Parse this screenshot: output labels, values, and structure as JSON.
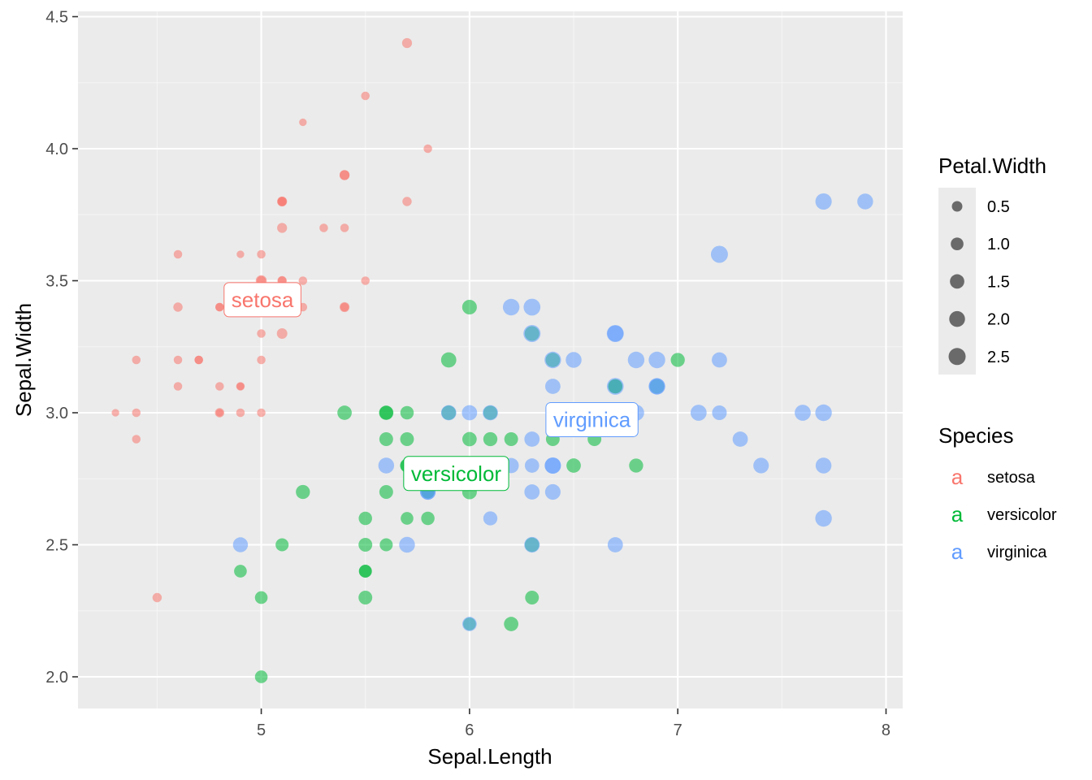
{
  "chart_data": {
    "type": "scatter",
    "xlabel": "Sepal.Length",
    "ylabel": "Sepal.Width",
    "xlim": [
      4.12,
      8.08
    ],
    "ylim": [
      1.88,
      4.52
    ],
    "x_ticks": [
      5,
      6,
      7,
      8
    ],
    "x_tick_labels": [
      "5",
      "6",
      "7",
      "8"
    ],
    "y_ticks": [
      2.0,
      2.5,
      3.0,
      3.5,
      4.0,
      4.5
    ],
    "y_tick_labels": [
      "2.0",
      "2.5",
      "3.0",
      "3.5",
      "4.0",
      "4.5"
    ],
    "grid": true,
    "legend_position": "right",
    "size_legend": {
      "title": "Petal.Width",
      "items": [
        {
          "value": 0.5,
          "label": "0.5"
        },
        {
          "value": 1.0,
          "label": "1.0"
        },
        {
          "value": 1.5,
          "label": "1.5"
        },
        {
          "value": 2.0,
          "label": "2.0"
        },
        {
          "value": 2.5,
          "label": "2.5"
        }
      ]
    },
    "color_legend": {
      "title": "Species",
      "glyph": "a",
      "items": [
        {
          "label": "setosa",
          "color": "#F8766D"
        },
        {
          "label": "versicolor",
          "color": "#00BA38"
        },
        {
          "label": "virginica",
          "color": "#619CFF"
        }
      ]
    },
    "species_labels": [
      {
        "label": "setosa",
        "x": 5.006,
        "y": 3.428,
        "color": "#F8766D"
      },
      {
        "label": "versicolor",
        "x": 5.936,
        "y": 2.77,
        "color": "#00BA38"
      },
      {
        "label": "virginica",
        "x": 6.588,
        "y": 2.974,
        "color": "#619CFF"
      }
    ],
    "series": [
      {
        "name": "setosa",
        "color": "#F8766D",
        "points": [
          [
            5.1,
            3.5,
            0.2
          ],
          [
            4.9,
            3.0,
            0.2
          ],
          [
            4.7,
            3.2,
            0.2
          ],
          [
            4.6,
            3.1,
            0.2
          ],
          [
            5.0,
            3.6,
            0.2
          ],
          [
            5.4,
            3.9,
            0.4
          ],
          [
            4.6,
            3.4,
            0.3
          ],
          [
            5.0,
            3.4,
            0.2
          ],
          [
            4.4,
            2.9,
            0.2
          ],
          [
            4.9,
            3.1,
            0.1
          ],
          [
            5.4,
            3.7,
            0.2
          ],
          [
            4.8,
            3.4,
            0.2
          ],
          [
            4.8,
            3.0,
            0.1
          ],
          [
            4.3,
            3.0,
            0.1
          ],
          [
            5.8,
            4.0,
            0.2
          ],
          [
            5.7,
            4.4,
            0.4
          ],
          [
            5.4,
            3.9,
            0.4
          ],
          [
            5.1,
            3.5,
            0.3
          ],
          [
            5.7,
            3.8,
            0.3
          ],
          [
            5.1,
            3.8,
            0.3
          ],
          [
            5.4,
            3.4,
            0.2
          ],
          [
            5.1,
            3.7,
            0.4
          ],
          [
            4.6,
            3.6,
            0.2
          ],
          [
            5.1,
            3.3,
            0.5
          ],
          [
            4.8,
            3.4,
            0.2
          ],
          [
            5.0,
            3.0,
            0.2
          ],
          [
            5.0,
            3.4,
            0.4
          ],
          [
            5.2,
            3.5,
            0.2
          ],
          [
            5.2,
            3.4,
            0.2
          ],
          [
            4.7,
            3.2,
            0.2
          ],
          [
            4.8,
            3.1,
            0.2
          ],
          [
            5.4,
            3.4,
            0.4
          ],
          [
            5.2,
            4.1,
            0.1
          ],
          [
            5.5,
            4.2,
            0.2
          ],
          [
            4.9,
            3.1,
            0.2
          ],
          [
            5.0,
            3.2,
            0.2
          ],
          [
            5.5,
            3.5,
            0.2
          ],
          [
            4.9,
            3.6,
            0.1
          ],
          [
            4.4,
            3.0,
            0.2
          ],
          [
            5.1,
            3.4,
            0.2
          ],
          [
            5.0,
            3.5,
            0.3
          ],
          [
            4.5,
            2.3,
            0.3
          ],
          [
            4.4,
            3.2,
            0.2
          ],
          [
            5.0,
            3.5,
            0.6
          ],
          [
            5.1,
            3.8,
            0.4
          ],
          [
            4.8,
            3.0,
            0.3
          ],
          [
            5.1,
            3.8,
            0.2
          ],
          [
            4.6,
            3.2,
            0.2
          ],
          [
            5.3,
            3.7,
            0.2
          ],
          [
            5.0,
            3.3,
            0.2
          ]
        ]
      },
      {
        "name": "versicolor",
        "color": "#00BA38",
        "points": [
          [
            7.0,
            3.2,
            1.4
          ],
          [
            6.4,
            3.2,
            1.5
          ],
          [
            6.9,
            3.1,
            1.5
          ],
          [
            5.5,
            2.3,
            1.3
          ],
          [
            6.5,
            2.8,
            1.5
          ],
          [
            5.7,
            2.8,
            1.3
          ],
          [
            6.3,
            3.3,
            1.6
          ],
          [
            4.9,
            2.4,
            1.0
          ],
          [
            6.6,
            2.9,
            1.3
          ],
          [
            5.2,
            2.7,
            1.4
          ],
          [
            5.0,
            2.0,
            1.0
          ],
          [
            5.9,
            3.0,
            1.5
          ],
          [
            6.0,
            2.2,
            1.0
          ],
          [
            6.1,
            2.9,
            1.4
          ],
          [
            5.6,
            2.9,
            1.3
          ],
          [
            6.7,
            3.1,
            1.4
          ],
          [
            5.6,
            3.0,
            1.5
          ],
          [
            5.8,
            2.7,
            1.0
          ],
          [
            6.2,
            2.2,
            1.5
          ],
          [
            5.6,
            2.5,
            1.1
          ],
          [
            5.9,
            3.2,
            1.8
          ],
          [
            6.1,
            2.8,
            1.3
          ],
          [
            6.3,
            2.5,
            1.5
          ],
          [
            6.1,
            2.8,
            1.2
          ],
          [
            6.4,
            2.9,
            1.3
          ],
          [
            6.6,
            3.0,
            1.4
          ],
          [
            6.8,
            2.8,
            1.4
          ],
          [
            6.7,
            3.0,
            1.7
          ],
          [
            6.0,
            2.9,
            1.5
          ],
          [
            5.7,
            2.6,
            1.0
          ],
          [
            5.5,
            2.4,
            1.1
          ],
          [
            5.5,
            2.4,
            1.0
          ],
          [
            5.8,
            2.7,
            1.2
          ],
          [
            6.0,
            2.7,
            1.6
          ],
          [
            5.4,
            3.0,
            1.5
          ],
          [
            6.0,
            3.4,
            1.6
          ],
          [
            6.7,
            3.1,
            1.5
          ],
          [
            6.3,
            2.3,
            1.3
          ],
          [
            5.6,
            3.0,
            1.3
          ],
          [
            5.5,
            2.5,
            1.3
          ],
          [
            5.5,
            2.6,
            1.2
          ],
          [
            6.1,
            3.0,
            1.4
          ],
          [
            5.8,
            2.6,
            1.2
          ],
          [
            5.0,
            2.3,
            1.0
          ],
          [
            5.6,
            2.7,
            1.3
          ],
          [
            5.7,
            3.0,
            1.2
          ],
          [
            5.7,
            2.9,
            1.3
          ],
          [
            6.2,
            2.9,
            1.3
          ],
          [
            5.1,
            2.5,
            1.1
          ],
          [
            5.7,
            2.8,
            1.3
          ]
        ]
      },
      {
        "name": "virginica",
        "color": "#619CFF",
        "points": [
          [
            6.3,
            3.3,
            2.5
          ],
          [
            5.8,
            2.7,
            1.9
          ],
          [
            7.1,
            3.0,
            2.1
          ],
          [
            6.3,
            2.9,
            1.8
          ],
          [
            6.5,
            3.0,
            2.2
          ],
          [
            7.6,
            3.0,
            2.1
          ],
          [
            4.9,
            2.5,
            1.7
          ],
          [
            7.3,
            2.9,
            1.8
          ],
          [
            6.7,
            2.5,
            1.8
          ],
          [
            7.2,
            3.6,
            2.5
          ],
          [
            6.5,
            3.2,
            2.0
          ],
          [
            6.4,
            2.7,
            1.9
          ],
          [
            6.8,
            3.0,
            2.1
          ],
          [
            5.7,
            2.5,
            2.0
          ],
          [
            5.8,
            2.8,
            2.4
          ],
          [
            6.4,
            3.2,
            2.3
          ],
          [
            6.5,
            3.0,
            1.8
          ],
          [
            7.7,
            3.8,
            2.2
          ],
          [
            7.7,
            2.6,
            2.3
          ],
          [
            6.0,
            2.2,
            1.5
          ],
          [
            6.9,
            3.2,
            2.3
          ],
          [
            5.6,
            2.8,
            2.0
          ],
          [
            7.7,
            2.8,
            2.0
          ],
          [
            6.3,
            2.7,
            1.8
          ],
          [
            6.7,
            3.3,
            2.1
          ],
          [
            7.2,
            3.2,
            1.8
          ],
          [
            6.2,
            2.8,
            1.8
          ],
          [
            6.1,
            3.0,
            1.8
          ],
          [
            6.4,
            2.8,
            2.1
          ],
          [
            7.2,
            3.0,
            1.6
          ],
          [
            7.4,
            2.8,
            1.9
          ],
          [
            7.9,
            3.8,
            2.0
          ],
          [
            6.4,
            2.8,
            2.2
          ],
          [
            6.3,
            2.8,
            1.5
          ],
          [
            6.1,
            2.6,
            1.4
          ],
          [
            7.7,
            3.0,
            2.3
          ],
          [
            6.3,
            3.4,
            2.4
          ],
          [
            6.4,
            3.1,
            1.8
          ],
          [
            6.0,
            3.0,
            1.8
          ],
          [
            6.9,
            3.1,
            2.1
          ],
          [
            6.7,
            3.1,
            2.4
          ],
          [
            6.9,
            3.1,
            2.3
          ],
          [
            5.8,
            2.7,
            1.9
          ],
          [
            6.8,
            3.2,
            2.3
          ],
          [
            6.7,
            3.3,
            2.5
          ],
          [
            6.7,
            3.0,
            2.3
          ],
          [
            6.3,
            2.5,
            1.9
          ],
          [
            6.5,
            3.0,
            2.0
          ],
          [
            6.2,
            3.4,
            2.3
          ],
          [
            5.9,
            3.0,
            1.8
          ]
        ]
      }
    ]
  }
}
